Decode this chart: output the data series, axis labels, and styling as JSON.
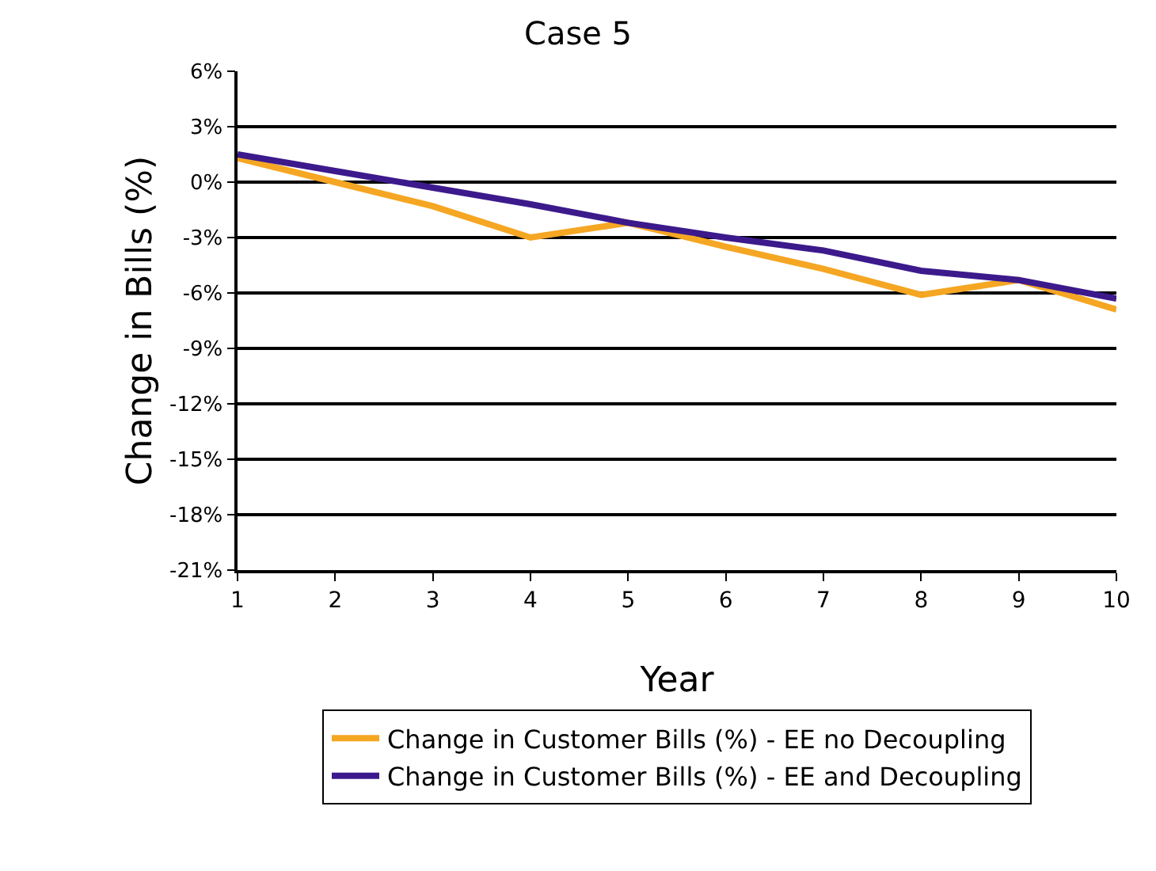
{
  "chart_data": {
    "type": "line",
    "title": "Case 5",
    "xlabel": "Year",
    "ylabel": "Change in Bills (%)",
    "x": [
      1,
      2,
      3,
      4,
      5,
      6,
      7,
      8,
      9,
      10
    ],
    "series": [
      {
        "name": "Change in Customer Bills (%) - EE no Decoupling",
        "color": "#f5a623",
        "values": [
          1.3,
          0,
          -1.3,
          -3,
          -2.2,
          -3.5,
          -4.7,
          -6.1,
          -5.3,
          -6.9
        ]
      },
      {
        "name": "Change in Customer Bills (%) - EE and Decoupling",
        "color": "#3c1a8c",
        "values": [
          1.5,
          0.6,
          -0.3,
          -1.2,
          -2.2,
          -3,
          -3.7,
          -4.8,
          -5.3,
          -6.3
        ]
      }
    ],
    "xlim": [
      1,
      10
    ],
    "xticks": [
      1,
      2,
      3,
      4,
      5,
      6,
      7,
      8,
      9,
      10
    ],
    "ylim": [
      -21,
      6
    ],
    "yticks": [
      {
        "value": -21,
        "label": "-21%"
      },
      {
        "value": -18,
        "label": "-18%"
      },
      {
        "value": -15,
        "label": "-15%"
      },
      {
        "value": -12,
        "label": "-12%"
      },
      {
        "value": -9,
        "label": "-9%"
      },
      {
        "value": -6,
        "label": "-6%"
      },
      {
        "value": -3,
        "label": "-3%"
      },
      {
        "value": 0,
        "label": "0%"
      },
      {
        "value": 3,
        "label": "3%"
      },
      {
        "value": 6,
        "label": "6%"
      }
    ],
    "grid": "y",
    "legend": "bottom",
    "marker": "none",
    "line_style": "solid"
  }
}
